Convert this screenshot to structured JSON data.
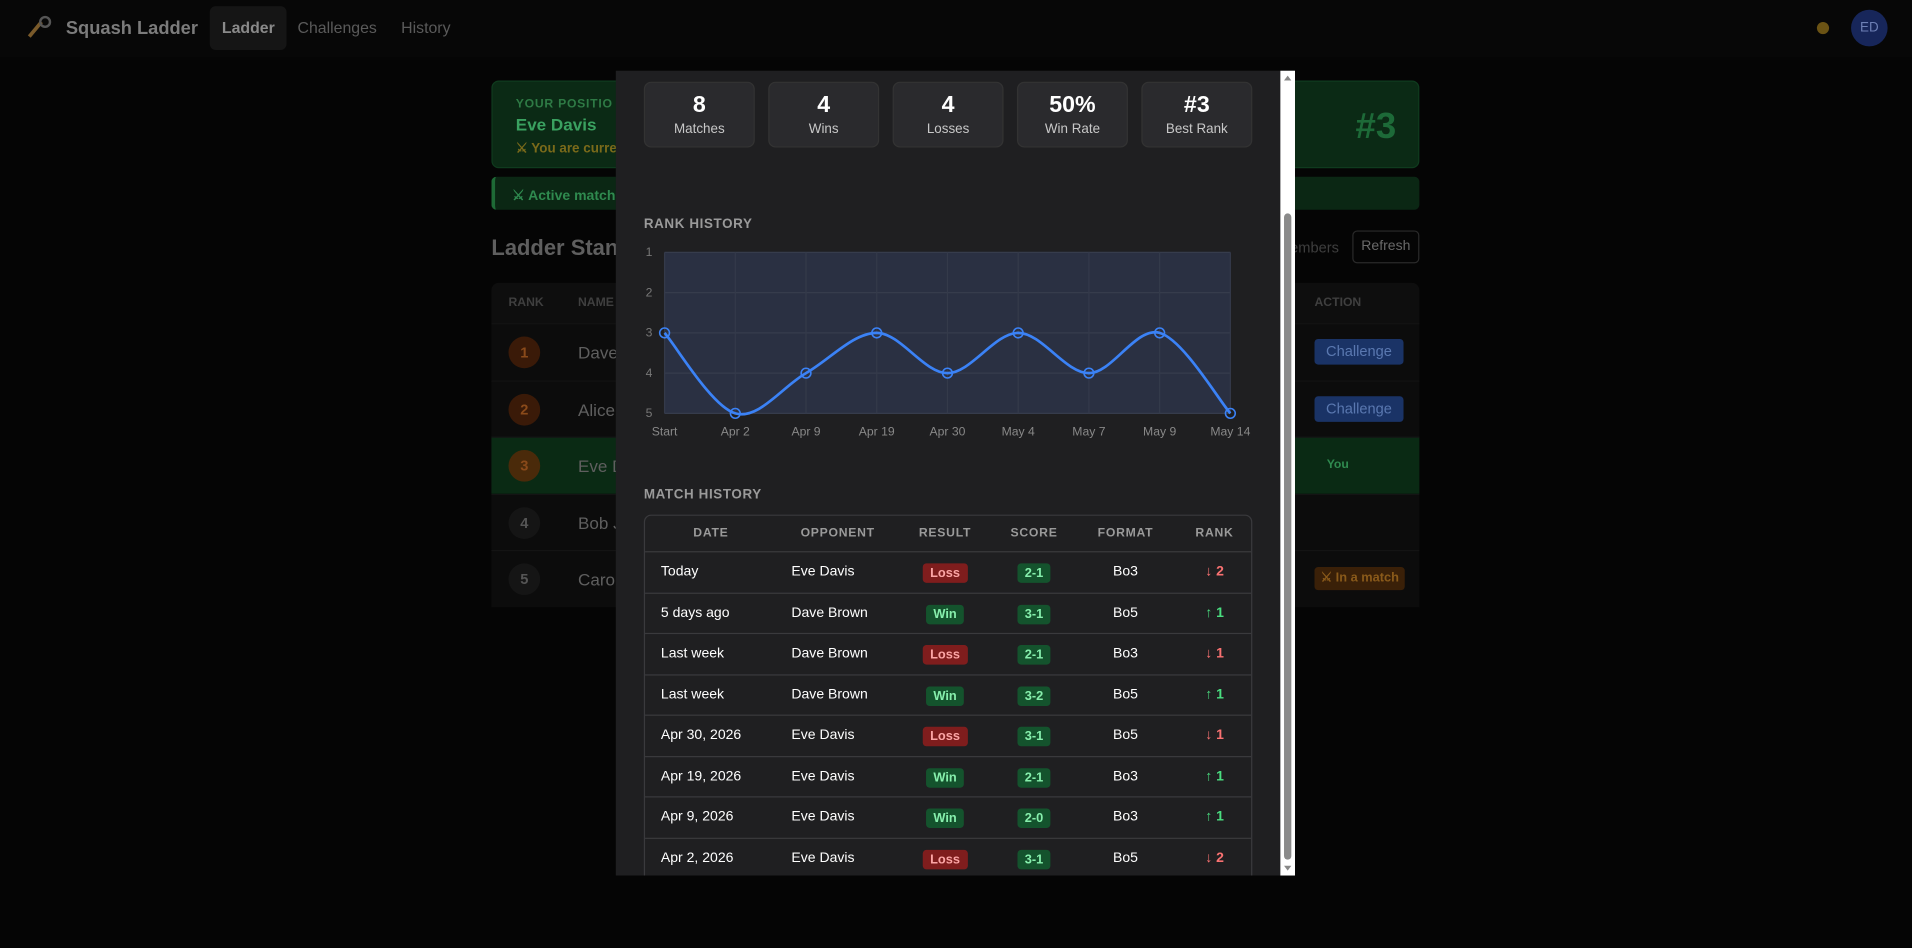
{
  "nav": {
    "brand": "Squash Ladder",
    "items": [
      "Ladder",
      "Challenges",
      "History"
    ],
    "avatar": "ED"
  },
  "background": {
    "position_label": "YOUR POSITIO",
    "position_name": "Eve Davis",
    "position_note": "⚔ You are curren",
    "position_rank": "#3",
    "banner": "⚔ Active match i",
    "heading": "Ladder Stan",
    "members": "embers",
    "refresh": "Refresh",
    "headers": [
      "RANK",
      "NAME",
      "ACTION"
    ],
    "rows": [
      {
        "rank": "1",
        "name": "Dave",
        "action": "Challenge"
      },
      {
        "rank": "2",
        "name": "Alice",
        "action": "Challenge"
      },
      {
        "rank": "3",
        "name": "Eve D",
        "action": "You"
      },
      {
        "rank": "4",
        "name": "Bob J",
        "action": null
      },
      {
        "rank": "5",
        "name": "Carol",
        "action": "⚔ In a match"
      }
    ]
  },
  "stats": [
    {
      "value": "8",
      "label": "Matches"
    },
    {
      "value": "4",
      "label": "Wins"
    },
    {
      "value": "4",
      "label": "Losses"
    },
    {
      "value": "50%",
      "label": "Win Rate"
    },
    {
      "value": "#3",
      "label": "Best Rank"
    }
  ],
  "chart_data": {
    "type": "line",
    "title": "RANK HISTORY",
    "categories": [
      "Start",
      "Apr 2",
      "Apr 9",
      "Apr 19",
      "Apr 30",
      "May 4",
      "May 7",
      "May 9",
      "May 14"
    ],
    "values": [
      3,
      5,
      4,
      3,
      4,
      3,
      4,
      3,
      5
    ],
    "color": "#3b82f6",
    "ylim": [
      1,
      5
    ],
    "yticks": [
      1,
      2,
      3,
      4,
      5
    ],
    "reverse_y": true,
    "grid": true
  },
  "match_history": {
    "title": "MATCH HISTORY",
    "headers": [
      "DATE",
      "OPPONENT",
      "RESULT",
      "SCORE",
      "FORMAT",
      "RANK"
    ],
    "rows": [
      [
        "Today",
        "Eve Davis",
        "Loss",
        "2-1",
        "Bo3",
        "↓ 2"
      ],
      [
        "5 days ago",
        "Dave Brown",
        "Win",
        "3-1",
        "Bo5",
        "↑ 1"
      ],
      [
        "Last week",
        "Dave Brown",
        "Loss",
        "2-1",
        "Bo3",
        "↓ 1"
      ],
      [
        "Last week",
        "Dave Brown",
        "Win",
        "3-2",
        "Bo5",
        "↑ 1"
      ],
      [
        "Apr 30, 2026",
        "Eve Davis",
        "Loss",
        "3-1",
        "Bo5",
        "↓ 1"
      ],
      [
        "Apr 19, 2026",
        "Eve Davis",
        "Win",
        "2-1",
        "Bo3",
        "↑ 1"
      ],
      [
        "Apr 9, 2026",
        "Eve Davis",
        "Win",
        "2-0",
        "Bo3",
        "↑ 1"
      ],
      [
        "Apr 2, 2026",
        "Eve Davis",
        "Loss",
        "3-1",
        "Bo5",
        "↓ 2"
      ]
    ]
  }
}
